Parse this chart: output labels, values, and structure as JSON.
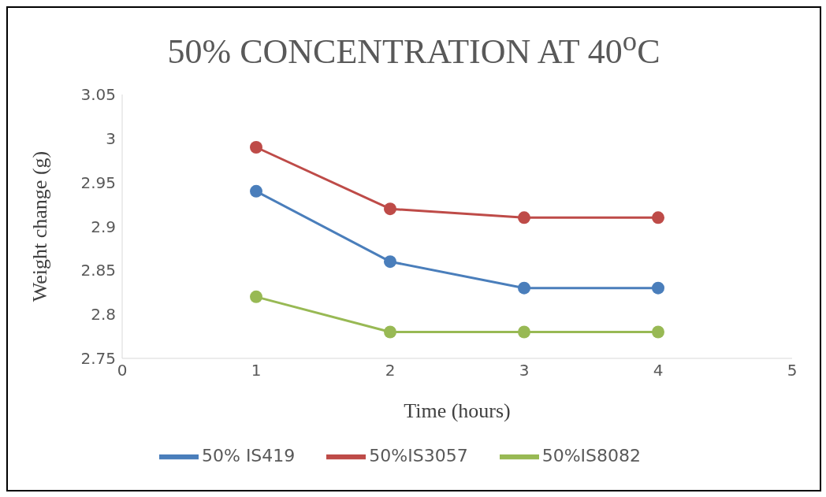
{
  "chart_data": {
    "type": "line",
    "title": "50% CONCENTRATION AT 40$^{o}$C",
    "xlabel": "Time  (hours)",
    "ylabel": "Weight  change  (g)",
    "x": [
      1,
      2,
      3,
      4
    ],
    "series": [
      {
        "name": "50% IS419",
        "color": "#4a7ebb",
        "values": [
          2.94,
          2.86,
          2.83,
          2.83
        ]
      },
      {
        "name": "50%IS3057",
        "color": "#be4b48",
        "values": [
          2.99,
          2.92,
          2.91,
          2.91
        ]
      },
      {
        "name": "50%IS8082",
        "color": "#98b954",
        "values": [
          2.82,
          2.78,
          2.78,
          2.78
        ]
      }
    ],
    "xlim": [
      0,
      5
    ],
    "xticks": [
      0,
      1,
      2,
      3,
      4,
      5
    ],
    "ylim": [
      2.75,
      3.05
    ],
    "yticks": [
      2.75,
      2.8,
      2.85,
      2.9,
      2.95,
      3,
      3.05
    ],
    "grid": false,
    "legend": "bottom",
    "marker": "circle",
    "line_style": "solid"
  }
}
